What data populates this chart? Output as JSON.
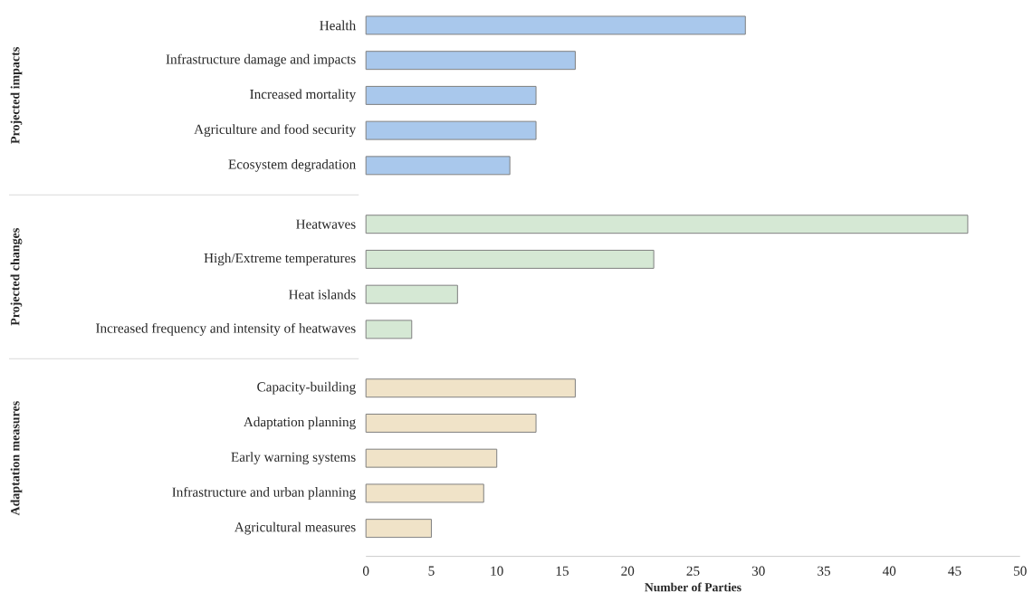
{
  "chart_data": {
    "type": "bar",
    "orientation": "horizontal",
    "xlabel": "Number of Parties",
    "categories": [
      "Health",
      "Infrastructure damage and impacts",
      "Increased mortality",
      "Agriculture and food security",
      "Ecosystem degradation",
      "Heatwaves",
      "High/Extreme temperatures",
      "Heat islands",
      "Increased frequency and intensity of heatwaves",
      "Capacity-building",
      "Adaptation planning",
      "Early warning systems",
      "Infrastructure and urban planning",
      "Agricultural measures"
    ],
    "values": [
      29,
      16,
      13,
      13,
      11,
      46,
      22,
      7,
      3.5,
      16,
      13,
      10,
      9,
      5
    ],
    "colors": [
      "#a9c8ec",
      "#a9c8ec",
      "#a9c8ec",
      "#a9c8ec",
      "#a9c8ec",
      "#d5e8d4",
      "#d5e8d4",
      "#d5e8d4",
      "#d5e8d4",
      "#f0e3c8",
      "#f0e3c8",
      "#f0e3c8",
      "#f0e3c8",
      "#f0e3c8"
    ],
    "annotations": [
      "Projected impacts",
      "Projected changes",
      "Adaptation measures"
    ],
    "xlim": [
      0,
      50
    ],
    "xticks": [
      0,
      5,
      10,
      15,
      20,
      25,
      30,
      35,
      40,
      45,
      50
    ]
  }
}
